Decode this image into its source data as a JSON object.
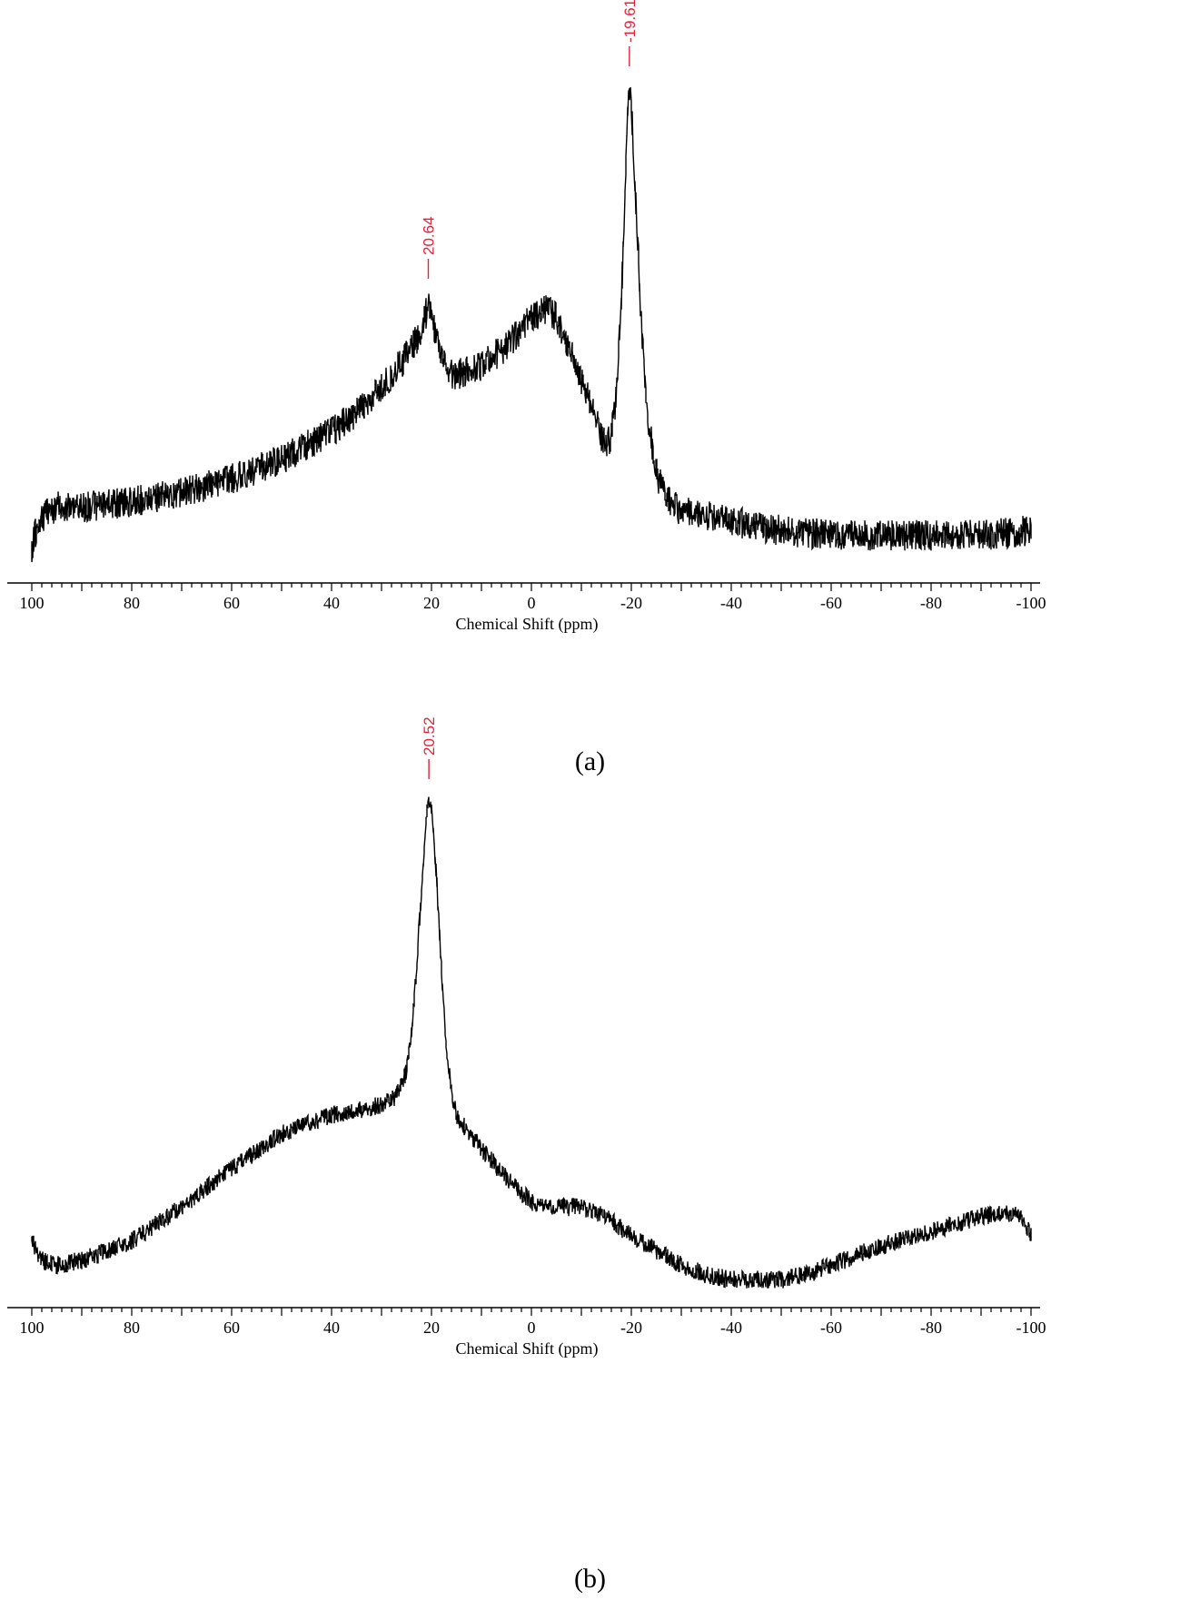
{
  "chart_data": [
    {
      "type": "line",
      "caption": "(a)",
      "xlabel": "Chemical Shift (ppm)",
      "ylabel": "",
      "xlim": [
        100,
        -100
      ],
      "x_ticks": [
        "100",
        "80",
        "60",
        "40",
        "20",
        "0",
        "-20",
        "-40",
        "-60",
        "-80",
        "-100"
      ],
      "y_axis_visible": false,
      "grid": false,
      "line_color": "#000000",
      "annotation_color": "#e8203a",
      "peak_labels": [
        {
          "text": "20.64",
          "x": 20.64,
          "y": 0.55
        },
        {
          "text": "-19.61",
          "x": -19.61,
          "y": 1.0
        }
      ],
      "series": [
        {
          "x": [
            100,
            99,
            97,
            95,
            90,
            80,
            70,
            60,
            50,
            40,
            35,
            30,
            25,
            22,
            20.64,
            19,
            17,
            15,
            10,
            5,
            0,
            -3,
            -5,
            -8,
            -10,
            -12,
            -14,
            -15,
            -16,
            -17,
            -18,
            -19,
            -19.61,
            -20,
            -21,
            -22,
            -23,
            -25,
            -27,
            -30,
            -35,
            -40,
            -50,
            -60,
            -70,
            -80,
            -90,
            -100
          ],
          "y": [
            0.0,
            0.05,
            0.08,
            0.09,
            0.09,
            0.1,
            0.12,
            0.15,
            0.19,
            0.25,
            0.29,
            0.34,
            0.41,
            0.46,
            0.52,
            0.45,
            0.37,
            0.37,
            0.39,
            0.43,
            0.49,
            0.51,
            0.49,
            0.42,
            0.36,
            0.3,
            0.24,
            0.22,
            0.24,
            0.33,
            0.52,
            0.85,
            0.98,
            0.95,
            0.72,
            0.48,
            0.3,
            0.16,
            0.11,
            0.08,
            0.07,
            0.06,
            0.04,
            0.03,
            0.03,
            0.03,
            0.03,
            0.04
          ]
        }
      ]
    },
    {
      "type": "line",
      "caption": "(b)",
      "xlabel": "Chemical Shift (ppm)",
      "ylabel": "",
      "xlim": [
        100,
        -100
      ],
      "x_ticks": [
        "100",
        "80",
        "60",
        "40",
        "20",
        "0",
        "-20",
        "-40",
        "-60",
        "-80",
        "-100"
      ],
      "y_axis_visible": false,
      "grid": false,
      "line_color": "#000000",
      "annotation_color": "#e8203a",
      "peak_labels": [
        {
          "text": "20.52",
          "x": 20.52,
          "y": 1.0
        }
      ],
      "series": [
        {
          "x": [
            100,
            98,
            95,
            90,
            80,
            70,
            60,
            50,
            40,
            35,
            30,
            27,
            25,
            24,
            23,
            22,
            21,
            20.52,
            20,
            19,
            18,
            17,
            16,
            15,
            13,
            10,
            5,
            0,
            -5,
            -10,
            -15,
            -20,
            -25,
            -30,
            -35,
            -40,
            -45,
            -50,
            -55,
            -60,
            -65,
            -70,
            -80,
            -90,
            -95,
            -98,
            -100
          ],
          "y": [
            0.07,
            0.03,
            0.02,
            0.03,
            0.07,
            0.14,
            0.22,
            0.29,
            0.33,
            0.34,
            0.35,
            0.37,
            0.42,
            0.5,
            0.63,
            0.8,
            0.94,
            0.99,
            0.96,
            0.82,
            0.63,
            0.47,
            0.38,
            0.33,
            0.3,
            0.26,
            0.2,
            0.15,
            0.14,
            0.14,
            0.12,
            0.08,
            0.05,
            0.02,
            0.0,
            -0.01,
            -0.01,
            -0.01,
            0.0,
            0.02,
            0.04,
            0.06,
            0.09,
            0.12,
            0.13,
            0.12,
            0.08
          ]
        }
      ]
    }
  ]
}
